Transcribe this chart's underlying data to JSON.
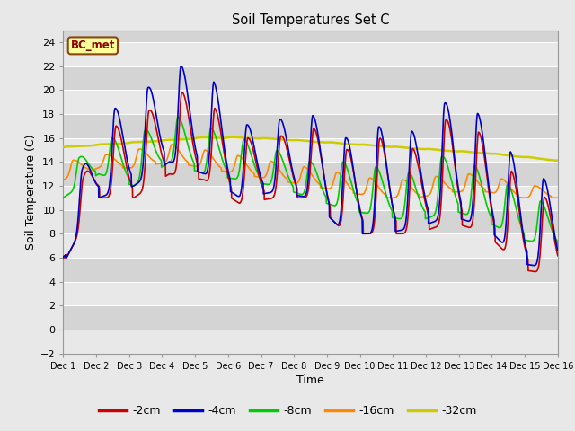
{
  "title": "Soil Temperatures Set C",
  "xlabel": "Time",
  "ylabel": "Soil Temperature (C)",
  "ylim": [
    -2,
    25
  ],
  "yticks": [
    -2,
    0,
    2,
    4,
    6,
    8,
    10,
    12,
    14,
    16,
    18,
    20,
    22,
    24
  ],
  "xlim": [
    0,
    15
  ],
  "xtick_labels": [
    "Dec 1",
    "Dec 2",
    "Dec 3",
    "Dec 4",
    "Dec 5",
    "Dec 6",
    "Dec 7",
    "Dec 8",
    "Dec 9",
    "Dec 10",
    "Dec 11",
    "Dec 12",
    "Dec 13",
    "Dec 14",
    "Dec 15",
    "Dec 16"
  ],
  "legend_label": "BC_met",
  "line_colors": {
    "-2cm": "#cc0000",
    "-4cm": "#0000cc",
    "-8cm": "#00cc00",
    "-16cm": "#ff8800",
    "-32cm": "#cccc00"
  },
  "figsize": [
    6.4,
    4.8
  ],
  "dpi": 100,
  "bg_color": "#e8e8e8",
  "plot_bg": "#d4d4d4",
  "strip_color": "#e8e8e8"
}
